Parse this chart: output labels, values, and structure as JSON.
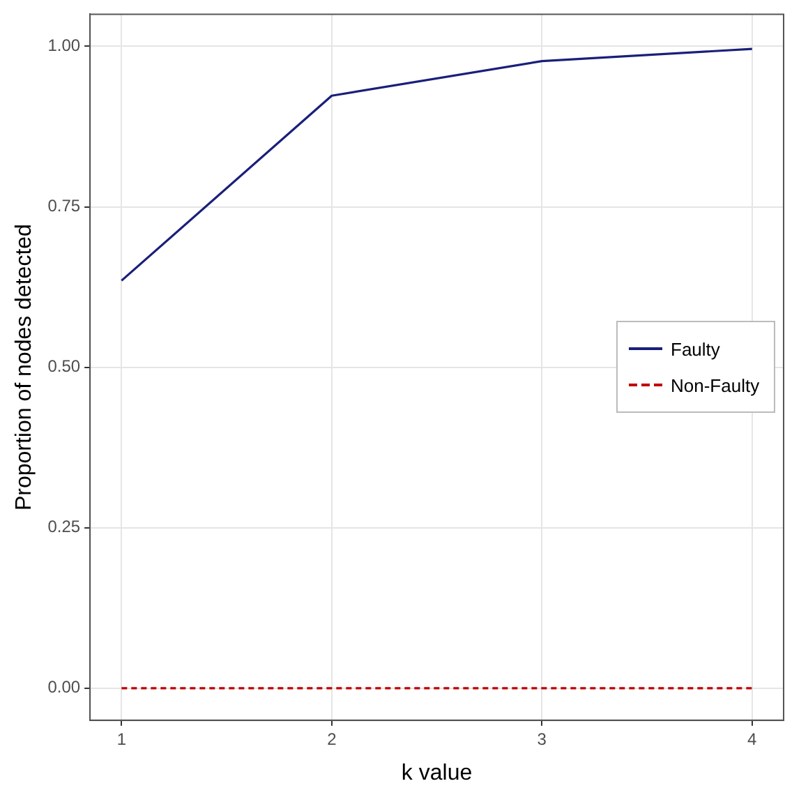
{
  "chart_data": {
    "type": "line",
    "xlabel": "k value",
    "ylabel": "Proportion of nodes detected",
    "x": [
      1,
      2,
      3,
      4
    ],
    "series": [
      {
        "name": "Faulty",
        "color": "#1a1f7a",
        "values": [
          0.635,
          0.923,
          0.977,
          0.996
        ],
        "line_style": "solid"
      },
      {
        "name": "Non-Faulty",
        "color": "#c00000",
        "values": [
          0,
          0,
          0,
          0
        ],
        "line_style": "dashed"
      }
    ],
    "xlim": [
      0.85,
      4.15
    ],
    "ylim": [
      -0.05,
      1.05
    ],
    "xticks": [
      1,
      2,
      3,
      4
    ],
    "yticks": [
      {
        "value": 0,
        "label": "0.00"
      },
      {
        "value": 0.25,
        "label": "0.25"
      },
      {
        "value": 0.5,
        "label": "0.50"
      },
      {
        "value": 0.75,
        "label": "0.75"
      },
      {
        "value": 1,
        "label": "1.00"
      }
    ],
    "grid": true,
    "legend": "right",
    "marker": "none"
  }
}
